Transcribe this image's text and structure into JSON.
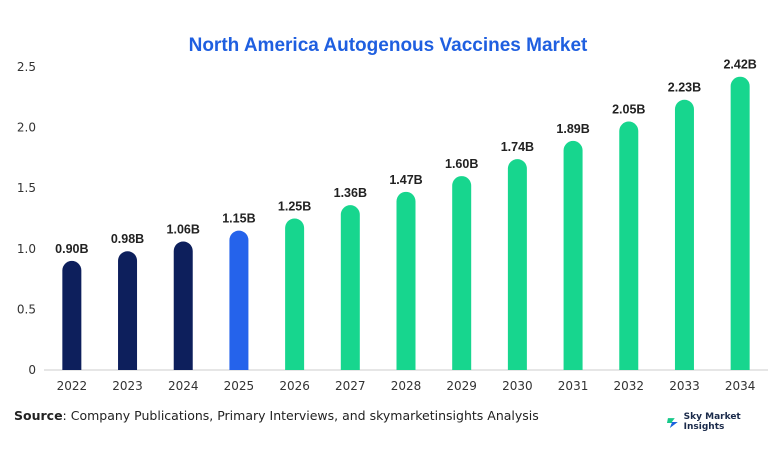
{
  "chart_data": {
    "type": "bar",
    "title": "North America Autogenous Vaccines Market",
    "xlabel": "",
    "ylabel": "",
    "categories": [
      "2022",
      "2023",
      "2024",
      "2025",
      "2026",
      "2027",
      "2028",
      "2029",
      "2030",
      "2031",
      "2032",
      "2033",
      "2034"
    ],
    "values": [
      0.9,
      0.98,
      1.06,
      1.15,
      1.25,
      1.36,
      1.47,
      1.6,
      1.74,
      1.89,
      2.05,
      2.23,
      2.42
    ],
    "data_labels": [
      "0.90B",
      "0.98B",
      "1.06B",
      "1.15B",
      "1.25B",
      "1.36B",
      "1.47B",
      "1.60B",
      "1.74B",
      "1.89B",
      "2.05B",
      "2.23B",
      "2.42B"
    ],
    "ylim": [
      0,
      2.5
    ],
    "yticks": [
      0,
      0.5,
      1.0,
      1.5,
      2.0,
      2.5
    ],
    "ytick_labels": [
      "0",
      "0.5",
      "1.0",
      "1.5",
      "2.0",
      "2.5"
    ],
    "grid": false,
    "legend": "none",
    "colors": {
      "historical": "#0d1f5c",
      "base_year": "#2563eb",
      "forecast": "#17d68e",
      "title": "#1f5fe0"
    },
    "color_groups": [
      "historical",
      "historical",
      "historical",
      "base_year",
      "forecast",
      "forecast",
      "forecast",
      "forecast",
      "forecast",
      "forecast",
      "forecast",
      "forecast",
      "forecast"
    ]
  },
  "footer": {
    "source_label": "Source",
    "source_text": ": Company Publications, Primary Interviews, and skymarketinsights Analysis"
  },
  "brand": {
    "name": "Sky Market Insights",
    "icon": "sky-market-insights-logo-icon"
  }
}
